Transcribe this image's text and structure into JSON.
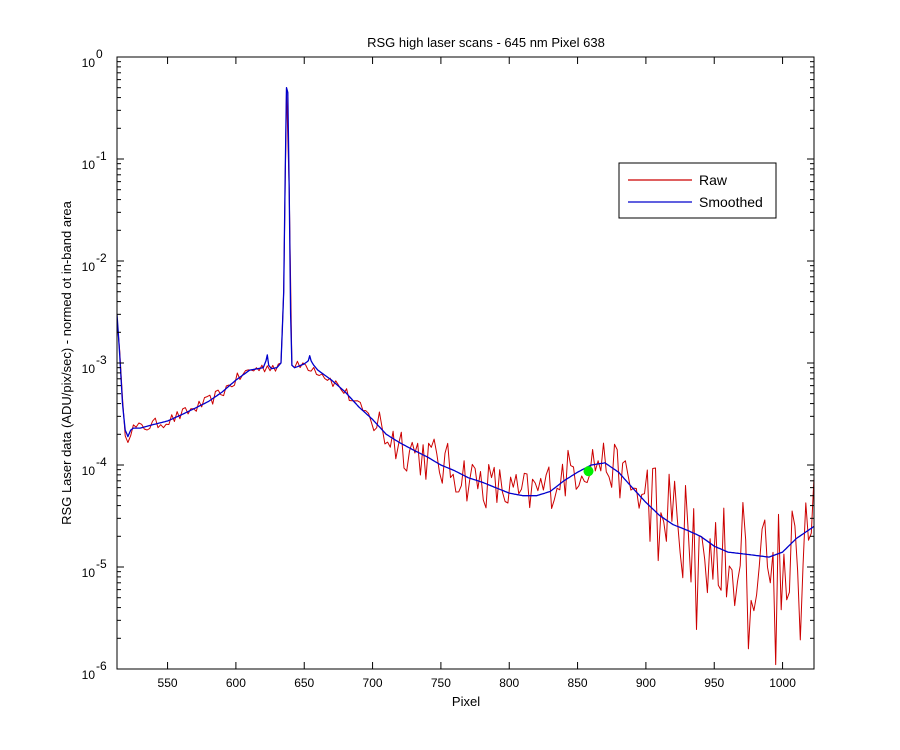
{
  "chart_data": {
    "type": "line",
    "title": "RSG high laser scans  - 645 nm    Pixel 638",
    "xlabel": "Pixel",
    "ylabel": "RSG Laser data (ADU/pix/sec) - normed ot in-band area",
    "xlim": [
      513,
      1023
    ],
    "ylim": [
      1e-06,
      1
    ],
    "yscale": "log",
    "grid": false,
    "legend_position": "top-right",
    "x_ticks": [
      550,
      600,
      650,
      700,
      750,
      800,
      850,
      900,
      950,
      1000
    ],
    "x_tick_labels": [
      "550",
      "600",
      "650",
      "700",
      "750",
      "800",
      "850",
      "900",
      "950",
      "1000"
    ],
    "y_tick_exponents": [
      0,
      -1,
      -2,
      -3,
      -4,
      -5,
      -6
    ],
    "y_tick_base": "10",
    "series": [
      {
        "name": "Raw",
        "color": "#cc0000",
        "noise_shown": true,
        "x": [
          513,
          515,
          517,
          519,
          521,
          523,
          525,
          530,
          540,
          550,
          560,
          570,
          580,
          590,
          600,
          610,
          620,
          625,
          630,
          633,
          635,
          636,
          637,
          638,
          639,
          640,
          641,
          643,
          645,
          650,
          655,
          660,
          670,
          680,
          690,
          700,
          710,
          720,
          730,
          740,
          750,
          760,
          770,
          780,
          790,
          800,
          810,
          820,
          830,
          840,
          850,
          860,
          870,
          880,
          890,
          900,
          910,
          920,
          930,
          940,
          950,
          960,
          970,
          980,
          990,
          1000,
          1010,
          1023
        ],
        "y": [
          0.003,
          0.0012,
          0.0004,
          0.00022,
          0.00019,
          0.00022,
          0.00023,
          0.00023,
          0.00025,
          0.00027,
          0.00031,
          0.00036,
          0.00042,
          0.00052,
          0.00068,
          0.00085,
          0.0009,
          0.00095,
          0.0009,
          0.001,
          0.005,
          0.06,
          0.5,
          0.45,
          0.05,
          0.003,
          0.00095,
          0.0009,
          0.00092,
          0.00098,
          0.00092,
          0.00085,
          0.00068,
          0.00052,
          0.00037,
          0.00028,
          0.0002,
          0.000165,
          0.00014,
          0.00012,
          0.0001,
          8.8e-05,
          7.5e-05,
          6.8e-05,
          6e-05,
          5.3e-05,
          5e-05,
          5.5e-05,
          6.5e-05,
          8e-05,
          9.5e-05,
          0.00011,
          0.000105,
          8.5e-05,
          6e-05,
          4.3e-05,
          3.2e-05,
          2.6e-05,
          2.3e-05,
          2e-05,
          1.6e-05,
          1.4e-05,
          1.35e-05,
          1.3e-05,
          1.25e-05,
          1.4e-05,
          1.9e-05,
          2.5e-05
        ]
      },
      {
        "name": "Smoothed",
        "color": "#0000cc",
        "x": [
          513,
          515,
          517,
          519,
          521,
          523,
          525,
          530,
          540,
          550,
          560,
          570,
          580,
          590,
          600,
          610,
          620,
          622,
          623,
          624,
          626,
          630,
          633,
          635,
          636,
          637,
          638,
          639,
          640,
          641,
          643,
          645,
          650,
          653,
          654,
          655,
          657,
          660,
          670,
          680,
          690,
          700,
          710,
          720,
          730,
          740,
          750,
          760,
          770,
          780,
          790,
          800,
          810,
          820,
          830,
          840,
          850,
          860,
          870,
          880,
          890,
          900,
          910,
          920,
          930,
          940,
          950,
          960,
          970,
          980,
          990,
          1000,
          1010,
          1023
        ],
        "y": [
          0.003,
          0.0012,
          0.0004,
          0.00022,
          0.00019,
          0.00022,
          0.00023,
          0.00023,
          0.00025,
          0.00027,
          0.00031,
          0.00036,
          0.00042,
          0.00052,
          0.00068,
          0.00085,
          0.0009,
          0.00105,
          0.0012,
          0.00095,
          0.00088,
          0.0009,
          0.001,
          0.005,
          0.06,
          0.5,
          0.45,
          0.05,
          0.003,
          0.00095,
          0.0009,
          0.00092,
          0.00098,
          0.00105,
          0.00118,
          0.00105,
          0.00095,
          0.00085,
          0.00068,
          0.00052,
          0.00037,
          0.00028,
          0.0002,
          0.000165,
          0.00014,
          0.00012,
          0.0001,
          8.8e-05,
          7.5e-05,
          6.8e-05,
          6e-05,
          5.3e-05,
          5e-05,
          5e-05,
          5.5e-05,
          7e-05,
          8.5e-05,
          0.0001,
          0.000105,
          8.5e-05,
          6e-05,
          4.3e-05,
          3.2e-05,
          2.6e-05,
          2.3e-05,
          2e-05,
          1.6e-05,
          1.4e-05,
          1.35e-05,
          1.3e-05,
          1.25e-05,
          1.4e-05,
          1.9e-05,
          2.5e-05
        ]
      }
    ],
    "marker": {
      "x": 858,
      "y": 8.7e-05,
      "color": "#00ee00"
    }
  }
}
